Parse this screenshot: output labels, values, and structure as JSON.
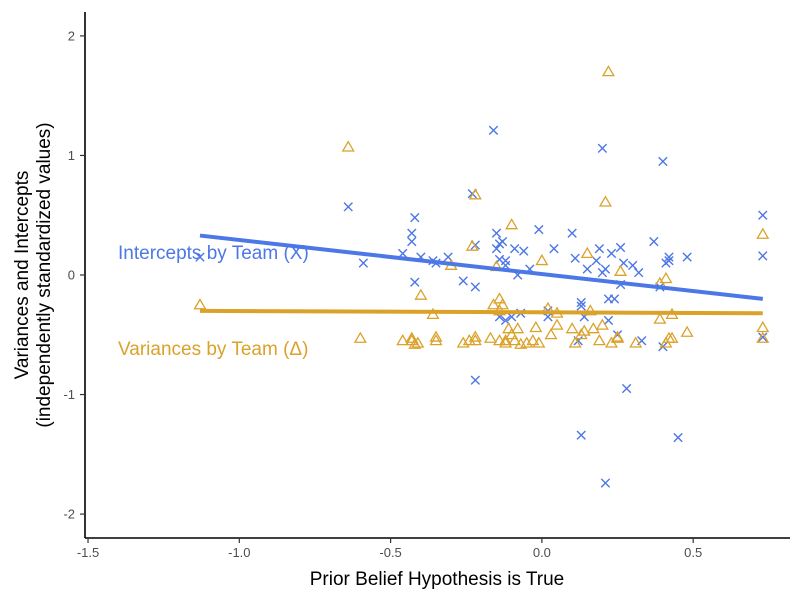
{
  "chart_data": {
    "type": "scatter",
    "title": "",
    "xlabel": "Prior Belief Hypothesis is True",
    "ylabel_line1": "Variances and Intercepts",
    "ylabel_line2": "(independently standardized values)",
    "xlim": [
      -1.51,
      0.82
    ],
    "ylim": [
      -2.2,
      2.2
    ],
    "x_ticks": [
      -1.5,
      -1.0,
      -0.5,
      0.0,
      0.5
    ],
    "x_tick_labels": [
      "-1.5",
      "-1.0",
      "-0.5",
      "0.0",
      "0.5"
    ],
    "y_ticks": [
      -2,
      -1,
      0,
      1,
      2
    ],
    "y_tick_labels": [
      "-2",
      "-1",
      "0",
      "1",
      "2"
    ],
    "grid": false,
    "legend": "none",
    "series": [
      {
        "name": "Intercepts by Team (X)",
        "marker": "x",
        "color": "#4C77E6",
        "trend": [
          [
            -1.13,
            0.33
          ],
          [
            0.73,
            -0.2
          ]
        ],
        "points": [
          [
            -1.13,
            0.15
          ],
          [
            -0.64,
            0.57
          ],
          [
            -0.59,
            0.1
          ],
          [
            -0.46,
            0.18
          ],
          [
            -0.43,
            0.35
          ],
          [
            -0.43,
            0.28
          ],
          [
            -0.42,
            0.48
          ],
          [
            -0.42,
            -0.06
          ],
          [
            -0.4,
            0.15
          ],
          [
            -0.36,
            0.12
          ],
          [
            -0.35,
            0.1
          ],
          [
            -0.31,
            0.15
          ],
          [
            -0.26,
            -0.05
          ],
          [
            -0.23,
            0.68
          ],
          [
            -0.22,
            0.25
          ],
          [
            -0.22,
            -0.1
          ],
          [
            -0.22,
            -0.88
          ],
          [
            -0.16,
            1.21
          ],
          [
            -0.15,
            0.35
          ],
          [
            -0.15,
            0.22
          ],
          [
            -0.14,
            0.26
          ],
          [
            -0.14,
            0.13
          ],
          [
            -0.13,
            0.28
          ],
          [
            -0.12,
            0.12
          ],
          [
            -0.12,
            0.08
          ],
          [
            -0.14,
            -0.35
          ],
          [
            -0.12,
            -0.38
          ],
          [
            -0.1,
            -0.35
          ],
          [
            -0.09,
            0.22
          ],
          [
            -0.08,
            0.0
          ],
          [
            -0.07,
            -0.32
          ],
          [
            -0.06,
            0.2
          ],
          [
            -0.04,
            0.05
          ],
          [
            -0.01,
            0.38
          ],
          [
            0.02,
            -0.3
          ],
          [
            0.02,
            -0.35
          ],
          [
            0.04,
            0.22
          ],
          [
            0.1,
            0.35
          ],
          [
            0.11,
            0.14
          ],
          [
            0.12,
            -0.55
          ],
          [
            0.13,
            -0.23
          ],
          [
            0.13,
            -0.26
          ],
          [
            0.13,
            -1.34
          ],
          [
            0.14,
            -0.35
          ],
          [
            0.15,
            0.05
          ],
          [
            0.18,
            0.12
          ],
          [
            0.19,
            0.22
          ],
          [
            0.2,
            1.06
          ],
          [
            0.2,
            0.02
          ],
          [
            0.21,
            0.05
          ],
          [
            0.21,
            -1.74
          ],
          [
            0.22,
            -0.2
          ],
          [
            0.22,
            -0.38
          ],
          [
            0.23,
            0.18
          ],
          [
            0.24,
            -0.2
          ],
          [
            0.25,
            -0.5
          ],
          [
            0.26,
            -0.08
          ],
          [
            0.26,
            0.23
          ],
          [
            0.27,
            0.1
          ],
          [
            0.28,
            -0.95
          ],
          [
            0.3,
            0.08
          ],
          [
            0.32,
            0.02
          ],
          [
            0.33,
            -0.55
          ],
          [
            0.37,
            0.28
          ],
          [
            0.39,
            -0.1
          ],
          [
            0.4,
            0.95
          ],
          [
            0.4,
            -0.6
          ],
          [
            0.41,
            0.1
          ],
          [
            0.42,
            0.15
          ],
          [
            0.42,
            0.12
          ],
          [
            0.45,
            -1.36
          ],
          [
            0.48,
            0.15
          ],
          [
            0.73,
            0.5
          ],
          [
            0.73,
            0.16
          ],
          [
            0.73,
            -0.52
          ]
        ]
      },
      {
        "name": "Variances by Team (Δ)",
        "marker": "triangle",
        "color": "#DBA22A",
        "trend": [
          [
            -1.13,
            -0.3
          ],
          [
            0.73,
            -0.32
          ]
        ],
        "points": [
          [
            -1.13,
            -0.25
          ],
          [
            -0.64,
            1.07
          ],
          [
            -0.6,
            -0.53
          ],
          [
            -0.46,
            -0.55
          ],
          [
            -0.43,
            -0.53
          ],
          [
            -0.43,
            -0.55
          ],
          [
            -0.42,
            -0.58
          ],
          [
            -0.41,
            -0.57
          ],
          [
            -0.4,
            -0.17
          ],
          [
            -0.36,
            -0.33
          ],
          [
            -0.35,
            -0.52
          ],
          [
            -0.35,
            -0.55
          ],
          [
            -0.3,
            0.08
          ],
          [
            -0.26,
            -0.57
          ],
          [
            -0.24,
            -0.55
          ],
          [
            -0.23,
            0.24
          ],
          [
            -0.22,
            0.67
          ],
          [
            -0.22,
            -0.52
          ],
          [
            -0.22,
            -0.55
          ],
          [
            -0.17,
            -0.53
          ],
          [
            -0.16,
            -0.25
          ],
          [
            -0.15,
            0.07
          ],
          [
            -0.14,
            -0.3
          ],
          [
            -0.14,
            -0.55
          ],
          [
            -0.14,
            -0.2
          ],
          [
            -0.13,
            -0.25
          ],
          [
            -0.12,
            -0.55
          ],
          [
            -0.12,
            -0.57
          ],
          [
            -0.11,
            -0.45
          ],
          [
            -0.1,
            -0.5
          ],
          [
            -0.1,
            0.42
          ],
          [
            -0.09,
            -0.55
          ],
          [
            -0.08,
            -0.45
          ],
          [
            -0.07,
            -0.58
          ],
          [
            -0.05,
            -0.57
          ],
          [
            -0.03,
            -0.55
          ],
          [
            -0.02,
            -0.44
          ],
          [
            -0.01,
            -0.57
          ],
          [
            0.0,
            0.12
          ],
          [
            0.02,
            -0.28
          ],
          [
            0.03,
            -0.5
          ],
          [
            0.05,
            -0.32
          ],
          [
            0.05,
            -0.42
          ],
          [
            0.1,
            -0.45
          ],
          [
            0.11,
            -0.57
          ],
          [
            0.13,
            -0.5
          ],
          [
            0.14,
            -0.47
          ],
          [
            0.15,
            0.18
          ],
          [
            0.16,
            -0.3
          ],
          [
            0.17,
            -0.45
          ],
          [
            0.19,
            -0.55
          ],
          [
            0.2,
            -0.42
          ],
          [
            0.21,
            0.61
          ],
          [
            0.22,
            1.7
          ],
          [
            0.23,
            -0.57
          ],
          [
            0.25,
            -0.52
          ],
          [
            0.25,
            -0.53
          ],
          [
            0.26,
            0.03
          ],
          [
            0.31,
            -0.57
          ],
          [
            0.39,
            -0.37
          ],
          [
            0.39,
            -0.07
          ],
          [
            0.41,
            -0.03
          ],
          [
            0.41,
            -0.57
          ],
          [
            0.42,
            -0.53
          ],
          [
            0.43,
            -0.33
          ],
          [
            0.43,
            -0.53
          ],
          [
            0.48,
            -0.48
          ],
          [
            0.73,
            -0.44
          ],
          [
            0.73,
            0.34
          ],
          [
            0.73,
            -0.53
          ]
        ]
      }
    ]
  },
  "annotations": {
    "intercepts_label": "Intercepts by Team (X)",
    "variances_label": "Variances by Team (Δ)"
  }
}
